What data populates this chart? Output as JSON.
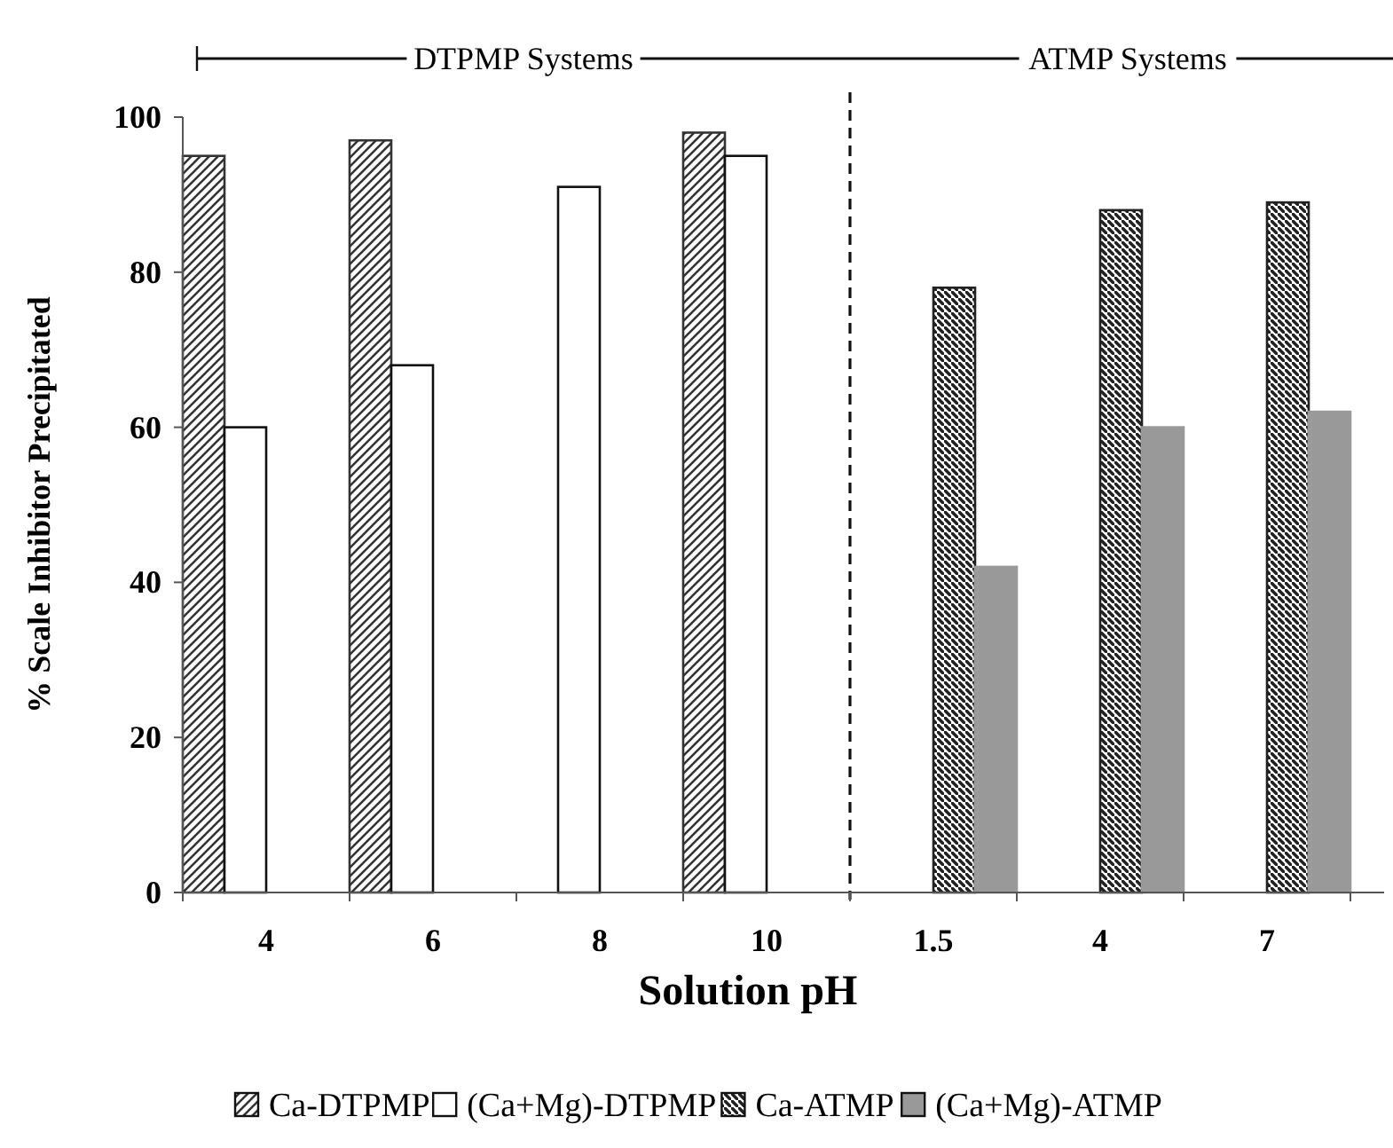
{
  "chart_data": {
    "type": "bar",
    "xlabel": "Solution pH",
    "ylabel": "% Scale Inhibitor Precipitated",
    "categories": [
      "4",
      "6",
      "8",
      "10",
      "1.5",
      "4",
      "7"
    ],
    "series": [
      {
        "name": "Ca-DTPMP",
        "color": "#333333",
        "values": [
          95,
          97,
          null,
          98,
          null,
          null,
          null
        ]
      },
      {
        "name": "(Ca+Mg)-DTPMP",
        "color": "#ffffff",
        "values": [
          60,
          68,
          91,
          95,
          null,
          null,
          null
        ]
      },
      {
        "name": "Ca-ATMP",
        "color": "#222222",
        "values": [
          null,
          null,
          null,
          null,
          78,
          88,
          89
        ]
      },
      {
        "name": "(Ca+Mg)-ATMP",
        "color": "#999999",
        "values": [
          null,
          null,
          null,
          null,
          42,
          60,
          62
        ]
      }
    ],
    "ylim": [
      0,
      100
    ],
    "yticks": [
      0,
      20,
      40,
      60,
      80,
      100
    ],
    "grid": false,
    "legend": "bottom",
    "annotations": [
      "DTPMP Systems",
      "ATMP Systems"
    ]
  }
}
